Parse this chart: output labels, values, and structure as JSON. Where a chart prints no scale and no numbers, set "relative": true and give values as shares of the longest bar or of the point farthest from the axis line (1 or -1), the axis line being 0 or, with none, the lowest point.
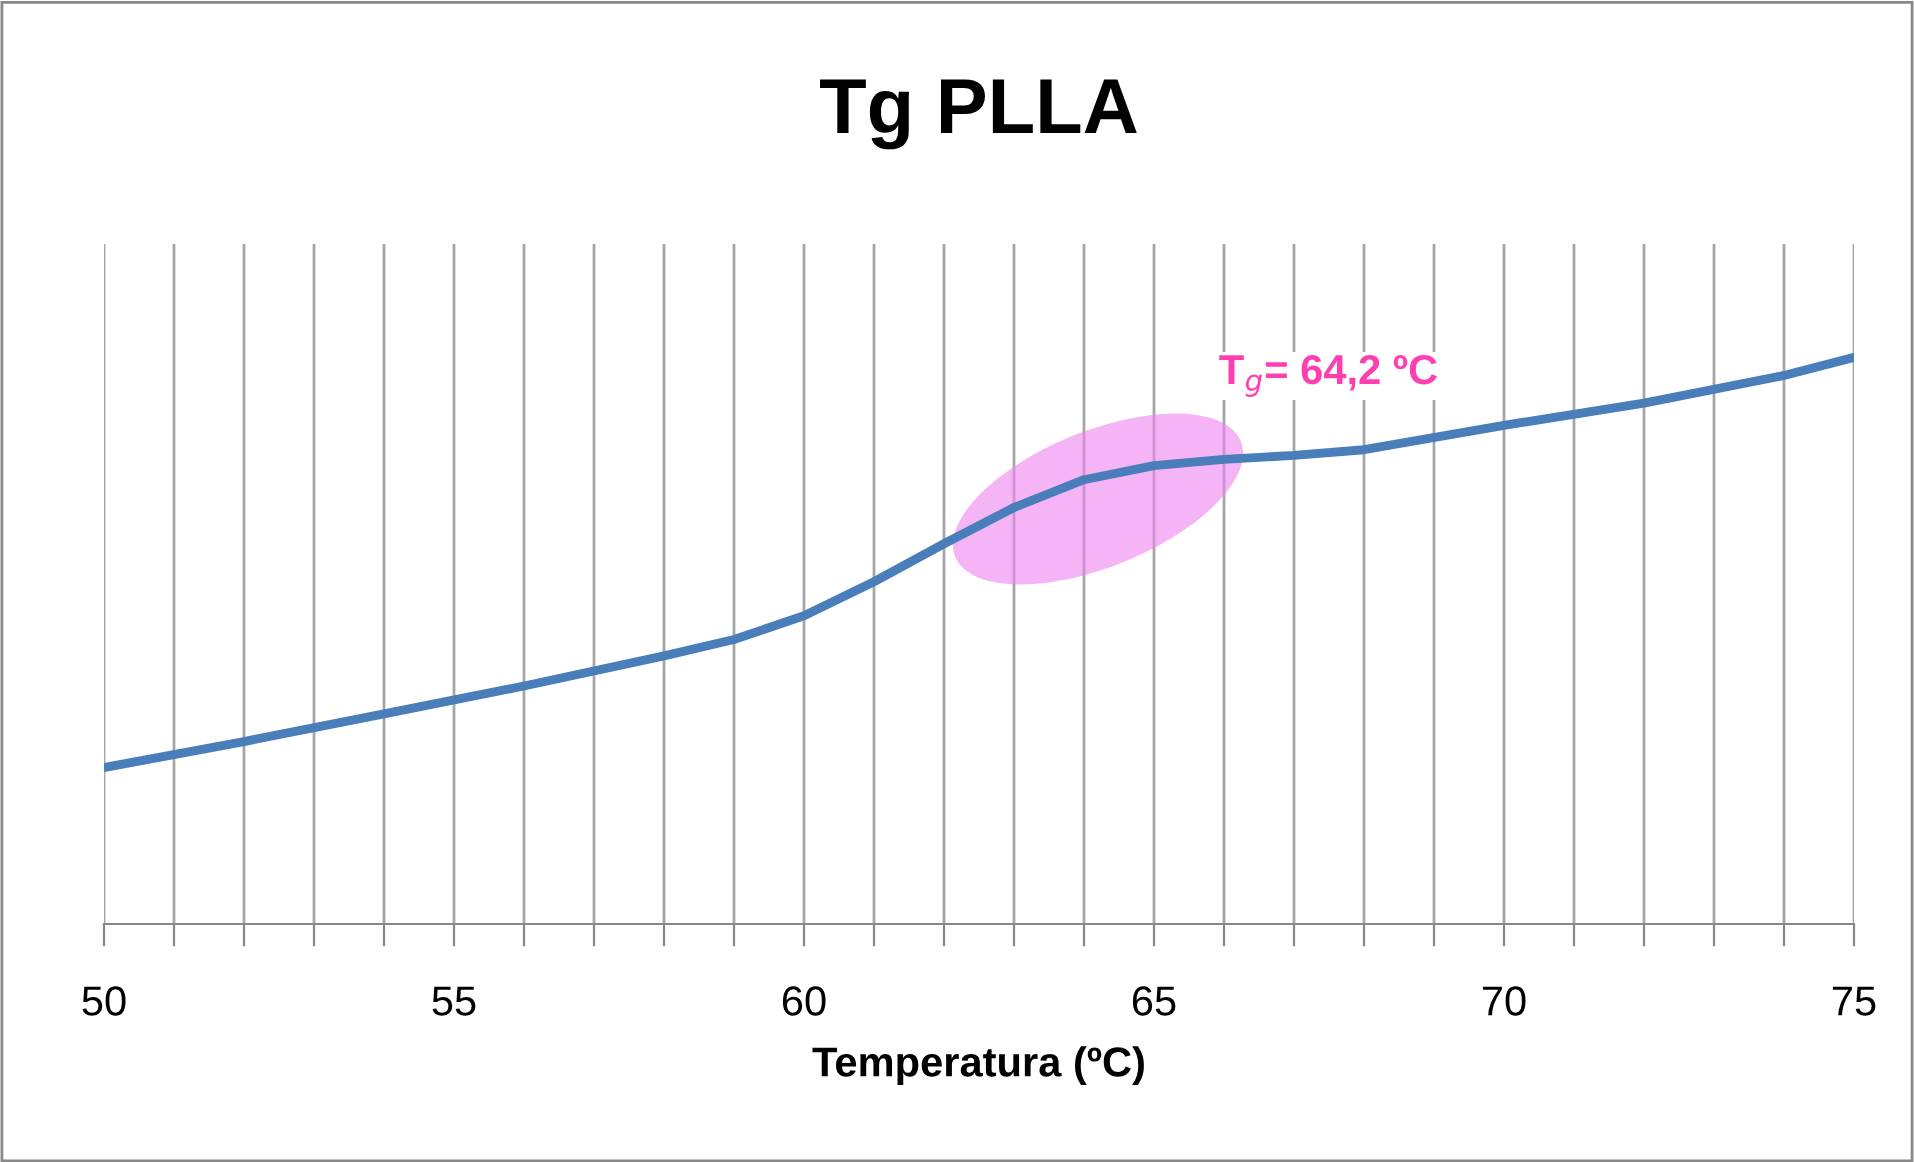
{
  "chart_data": {
    "type": "line",
    "title": "Tg PLLA",
    "xlabel": "Temperatura (ºC)",
    "relative": true,
    "x": [
      50,
      52,
      54,
      56,
      58,
      59,
      60,
      61,
      62,
      63,
      64,
      65,
      66,
      67,
      68,
      70,
      72,
      74,
      75
    ],
    "series": [
      {
        "color": "#4a7ebb",
        "values": [
          0.276,
          0.322,
          0.371,
          0.42,
          0.473,
          0.502,
          0.544,
          0.604,
          0.671,
          0.735,
          0.784,
          0.809,
          0.82,
          0.827,
          0.837,
          0.88,
          0.919,
          0.968,
          1
        ]
      }
    ],
    "xlim": [
      50,
      75
    ],
    "xticks": [
      50,
      {
        "value": 51,
        "label": null
      },
      {
        "value": 52,
        "label": null
      },
      {
        "value": 53,
        "label": null
      },
      {
        "value": 54,
        "label": null
      },
      55,
      {
        "value": 56,
        "label": null
      },
      {
        "value": 57,
        "label": null
      },
      {
        "value": 58,
        "label": null
      },
      {
        "value": 59,
        "label": null
      },
      60,
      {
        "value": 61,
        "label": null
      },
      {
        "value": 62,
        "label": null
      },
      {
        "value": 63,
        "label": null
      },
      {
        "value": 64,
        "label": null
      },
      65,
      {
        "value": 66,
        "label": null
      },
      {
        "value": 67,
        "label": null
      },
      {
        "value": 68,
        "label": null
      },
      {
        "value": 69,
        "label": null
      },
      70,
      {
        "value": 71,
        "label": null
      },
      {
        "value": 72,
        "label": null
      },
      {
        "value": 73,
        "label": null
      },
      {
        "value": 74,
        "label": null
      },
      75
    ],
    "grid": "x",
    "marker": "none",
    "line_style": "solid",
    "annotations": [
      "T$_{g}$= 64,2 ºC"
    ]
  }
}
